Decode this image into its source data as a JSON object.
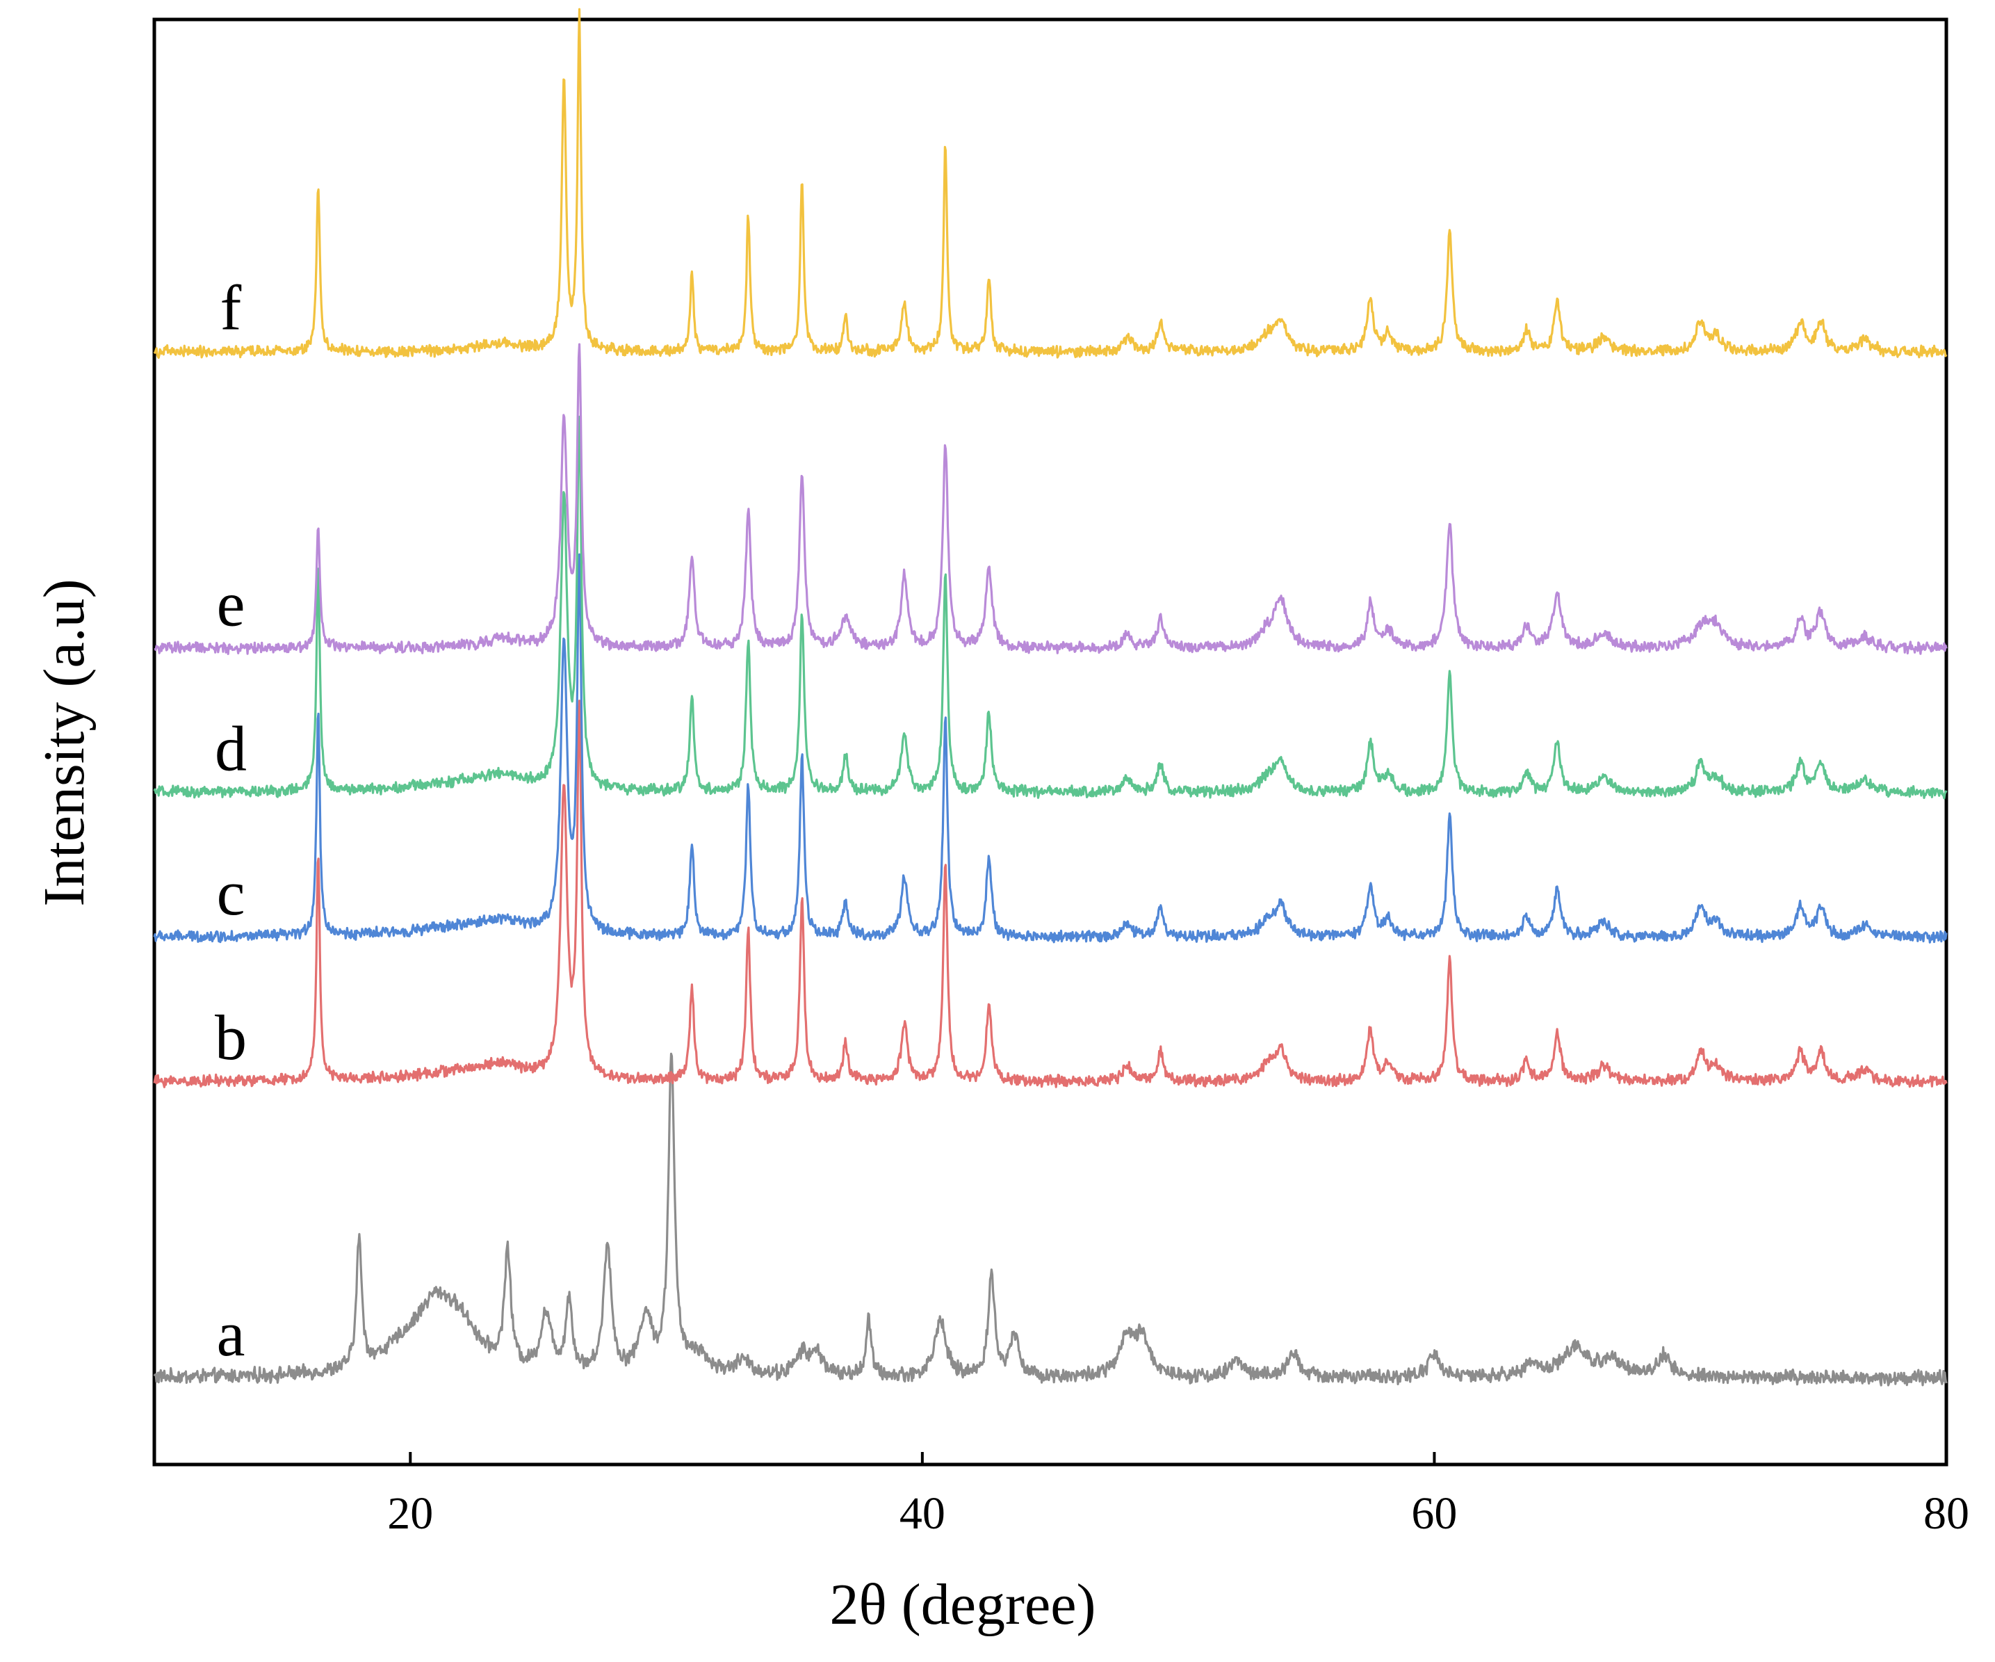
{
  "chart_data": {
    "type": "line",
    "title": "",
    "xlabel": "2θ (degree)",
    "ylabel": "Intensity (a.u)",
    "xlim": [
      10,
      80
    ],
    "xticks": [
      20,
      40,
      60,
      80
    ],
    "xtick_labels": [
      "20",
      "40",
      "60",
      "80"
    ],
    "ylim": [
      0,
      1.0
    ],
    "grid": false,
    "legend": "inline labels on left",
    "series": [
      {
        "name": "a",
        "color": "#8c8c8c",
        "offset": 0.06,
        "noise": 0.004,
        "peaks": [
          [
            18.0,
            0.09,
            0.12
          ],
          [
            19.8,
            0.015,
            1.2
          ],
          [
            21.0,
            0.04,
            0.9
          ],
          [
            22.0,
            0.025,
            0.9
          ],
          [
            23.8,
            0.08,
            0.15
          ],
          [
            25.3,
            0.04,
            0.25
          ],
          [
            26.2,
            0.05,
            0.15
          ],
          [
            27.7,
            0.09,
            0.18
          ],
          [
            29.2,
            0.04,
            0.3
          ],
          [
            30.2,
            0.22,
            0.14
          ],
          [
            31.2,
            0.015,
            0.5
          ],
          [
            33.0,
            0.01,
            0.4
          ],
          [
            35.3,
            0.015,
            0.3
          ],
          [
            35.9,
            0.015,
            0.3
          ],
          [
            37.9,
            0.04,
            0.12
          ],
          [
            40.7,
            0.04,
            0.25
          ],
          [
            42.7,
            0.07,
            0.15
          ],
          [
            43.6,
            0.03,
            0.2
          ],
          [
            48.0,
            0.025,
            0.35
          ],
          [
            48.6,
            0.025,
            0.35
          ],
          [
            52.3,
            0.012,
            0.3
          ],
          [
            54.5,
            0.015,
            0.3
          ],
          [
            60.0,
            0.015,
            0.3
          ],
          [
            63.8,
            0.01,
            0.3
          ],
          [
            65.5,
            0.02,
            0.6
          ],
          [
            67.0,
            0.012,
            0.5
          ],
          [
            69.0,
            0.015,
            0.3
          ]
        ]
      },
      {
        "name": "b",
        "color": "#e36f6f",
        "offset": 0.265,
        "noise": 0.003,
        "peaks": [
          [
            16.4,
            0.155,
            0.08
          ],
          [
            22.0,
            0.006,
            2.5
          ],
          [
            23.6,
            0.008,
            1.0
          ],
          [
            26.0,
            0.2,
            0.15
          ],
          [
            26.6,
            0.25,
            0.1
          ],
          [
            31.0,
            0.065,
            0.1
          ],
          [
            33.2,
            0.105,
            0.1
          ],
          [
            35.3,
            0.125,
            0.1
          ],
          [
            37.0,
            0.025,
            0.12
          ],
          [
            39.3,
            0.04,
            0.15
          ],
          [
            40.9,
            0.15,
            0.1
          ],
          [
            42.6,
            0.055,
            0.12
          ],
          [
            48.0,
            0.01,
            0.2
          ],
          [
            49.3,
            0.02,
            0.15
          ],
          [
            53.5,
            0.01,
            0.4
          ],
          [
            54.0,
            0.02,
            0.25
          ],
          [
            57.5,
            0.035,
            0.15
          ],
          [
            58.2,
            0.012,
            0.2
          ],
          [
            60.6,
            0.085,
            0.12
          ],
          [
            63.6,
            0.015,
            0.15
          ],
          [
            64.8,
            0.035,
            0.15
          ],
          [
            66.6,
            0.01,
            0.3
          ],
          [
            70.4,
            0.02,
            0.2
          ],
          [
            71.0,
            0.01,
            0.3
          ],
          [
            74.3,
            0.02,
            0.2
          ],
          [
            75.1,
            0.02,
            0.2
          ],
          [
            76.8,
            0.008,
            0.3
          ]
        ]
      },
      {
        "name": "c",
        "color": "#4f86d6",
        "offset": 0.365,
        "noise": 0.003,
        "peaks": [
          [
            16.4,
            0.155,
            0.08
          ],
          [
            22.0,
            0.006,
            2.5
          ],
          [
            23.6,
            0.008,
            1.0
          ],
          [
            26.0,
            0.2,
            0.15
          ],
          [
            26.6,
            0.25,
            0.1
          ],
          [
            31.0,
            0.065,
            0.1
          ],
          [
            33.2,
            0.105,
            0.1
          ],
          [
            35.3,
            0.125,
            0.1
          ],
          [
            37.0,
            0.025,
            0.12
          ],
          [
            39.3,
            0.04,
            0.15
          ],
          [
            40.9,
            0.15,
            0.1
          ],
          [
            42.6,
            0.055,
            0.12
          ],
          [
            48.0,
            0.01,
            0.2
          ],
          [
            49.3,
            0.02,
            0.15
          ],
          [
            53.5,
            0.01,
            0.4
          ],
          [
            54.0,
            0.02,
            0.25
          ],
          [
            57.5,
            0.035,
            0.15
          ],
          [
            58.2,
            0.012,
            0.2
          ],
          [
            60.6,
            0.085,
            0.12
          ],
          [
            63.6,
            0.015,
            0.15
          ],
          [
            64.8,
            0.035,
            0.15
          ],
          [
            66.6,
            0.01,
            0.3
          ],
          [
            70.4,
            0.02,
            0.2
          ],
          [
            71.0,
            0.01,
            0.3
          ],
          [
            74.3,
            0.02,
            0.2
          ],
          [
            75.1,
            0.02,
            0.2
          ],
          [
            76.8,
            0.008,
            0.3
          ]
        ]
      },
      {
        "name": "d",
        "color": "#5cc48f",
        "offset": 0.465,
        "noise": 0.003,
        "peaks": [
          [
            16.4,
            0.155,
            0.08
          ],
          [
            22.0,
            0.006,
            2.5
          ],
          [
            23.6,
            0.008,
            1.0
          ],
          [
            26.0,
            0.2,
            0.15
          ],
          [
            26.6,
            0.25,
            0.1
          ],
          [
            31.0,
            0.065,
            0.1
          ],
          [
            33.2,
            0.105,
            0.1
          ],
          [
            35.3,
            0.125,
            0.1
          ],
          [
            37.0,
            0.025,
            0.12
          ],
          [
            39.3,
            0.04,
            0.15
          ],
          [
            40.9,
            0.15,
            0.1
          ],
          [
            42.6,
            0.055,
            0.12
          ],
          [
            48.0,
            0.01,
            0.2
          ],
          [
            49.3,
            0.02,
            0.15
          ],
          [
            53.5,
            0.01,
            0.4
          ],
          [
            54.0,
            0.02,
            0.25
          ],
          [
            57.5,
            0.035,
            0.15
          ],
          [
            58.2,
            0.012,
            0.2
          ],
          [
            60.6,
            0.085,
            0.12
          ],
          [
            63.6,
            0.015,
            0.15
          ],
          [
            64.8,
            0.035,
            0.15
          ],
          [
            66.6,
            0.01,
            0.3
          ],
          [
            70.4,
            0.02,
            0.2
          ],
          [
            71.0,
            0.01,
            0.3
          ],
          [
            74.3,
            0.02,
            0.2
          ],
          [
            75.1,
            0.02,
            0.2
          ],
          [
            76.8,
            0.008,
            0.3
          ]
        ]
      },
      {
        "name": "e",
        "color": "#b98ad8",
        "offset": 0.565,
        "noise": 0.003,
        "peaks": [
          [
            16.4,
            0.085,
            0.08
          ],
          [
            23.6,
            0.006,
            1.0
          ],
          [
            26.0,
            0.155,
            0.15
          ],
          [
            26.6,
            0.2,
            0.1
          ],
          [
            31.0,
            0.065,
            0.12
          ],
          [
            33.2,
            0.095,
            0.12
          ],
          [
            35.3,
            0.12,
            0.12
          ],
          [
            37.0,
            0.02,
            0.25
          ],
          [
            39.3,
            0.05,
            0.15
          ],
          [
            40.9,
            0.14,
            0.12
          ],
          [
            42.6,
            0.055,
            0.15
          ],
          [
            48.0,
            0.01,
            0.2
          ],
          [
            49.3,
            0.02,
            0.15
          ],
          [
            53.5,
            0.01,
            0.4
          ],
          [
            54.0,
            0.03,
            0.3
          ],
          [
            57.5,
            0.03,
            0.15
          ],
          [
            58.2,
            0.012,
            0.2
          ],
          [
            60.6,
            0.085,
            0.15
          ],
          [
            63.6,
            0.015,
            0.2
          ],
          [
            64.8,
            0.035,
            0.2
          ],
          [
            66.6,
            0.01,
            0.3
          ],
          [
            70.5,
            0.015,
            0.4
          ],
          [
            71.0,
            0.012,
            0.3
          ],
          [
            74.3,
            0.02,
            0.2
          ],
          [
            75.1,
            0.025,
            0.2
          ],
          [
            76.8,
            0.008,
            0.3
          ]
        ]
      },
      {
        "name": "f",
        "color": "#f2c23f",
        "offset": 0.77,
        "noise": 0.003,
        "peaks": [
          [
            16.4,
            0.115,
            0.08
          ],
          [
            23.5,
            0.006,
            1.0
          ],
          [
            26.0,
            0.19,
            0.1
          ],
          [
            26.6,
            0.23,
            0.08
          ],
          [
            31.0,
            0.055,
            0.08
          ],
          [
            33.2,
            0.095,
            0.08
          ],
          [
            35.3,
            0.12,
            0.08
          ],
          [
            37.0,
            0.025,
            0.1
          ],
          [
            39.3,
            0.035,
            0.12
          ],
          [
            40.9,
            0.145,
            0.08
          ],
          [
            42.6,
            0.05,
            0.1
          ],
          [
            48.0,
            0.01,
            0.2
          ],
          [
            49.3,
            0.02,
            0.15
          ],
          [
            53.5,
            0.01,
            0.4
          ],
          [
            54.0,
            0.02,
            0.25
          ],
          [
            57.5,
            0.035,
            0.15
          ],
          [
            58.2,
            0.012,
            0.2
          ],
          [
            60.6,
            0.085,
            0.12
          ],
          [
            63.6,
            0.015,
            0.15
          ],
          [
            64.8,
            0.035,
            0.15
          ],
          [
            66.6,
            0.01,
            0.3
          ],
          [
            70.4,
            0.02,
            0.2
          ],
          [
            71.0,
            0.01,
            0.3
          ],
          [
            74.3,
            0.02,
            0.2
          ],
          [
            75.1,
            0.02,
            0.2
          ],
          [
            76.8,
            0.008,
            0.3
          ]
        ]
      }
    ]
  }
}
